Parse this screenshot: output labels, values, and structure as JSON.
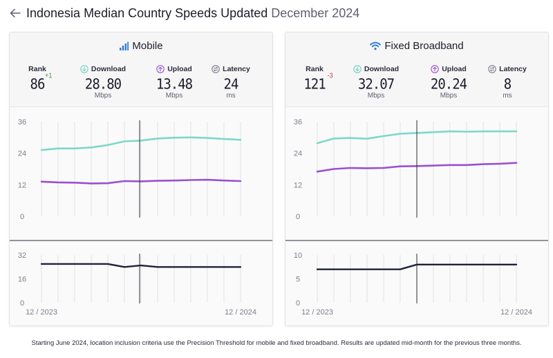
{
  "header": {
    "title": "Indonesia Median Country Speeds Updated",
    "date": "December 2024"
  },
  "colors": {
    "download": "#7dd8c8",
    "upload": "#9a4fd3",
    "latency": "#1f2238",
    "grid": "#e3e3e6"
  },
  "labels": {
    "rank": "Rank",
    "download": "Download",
    "upload": "Upload",
    "latency": "Latency",
    "mbps": "Mbps",
    "ms": "ms"
  },
  "mobile": {
    "title": "Mobile",
    "icon": "signal-bars-icon",
    "rank": "86",
    "rank_delta": "+1",
    "download": "28.80",
    "upload": "13.48",
    "latency": "24"
  },
  "fixed": {
    "title": "Fixed Broadband",
    "icon": "wifi-icon",
    "rank": "121",
    "rank_delta": "-3",
    "download": "32.07",
    "upload": "20.24",
    "latency": "8"
  },
  "chart_data": [
    {
      "type": "line",
      "title": "Mobile",
      "x": [
        "12 / 2023",
        "01 / 2024",
        "02 / 2024",
        "03 / 2024",
        "04 / 2024",
        "05 / 2024",
        "06 / 2024",
        "07 / 2024",
        "08 / 2024",
        "09 / 2024",
        "10 / 2024",
        "11 / 2024",
        "12 / 2024"
      ],
      "x_tick_labels": [
        "12 / 2023",
        "12 / 2024"
      ],
      "marker_index": 6,
      "speed_axis": {
        "ticks": [
          "36",
          "24",
          "12",
          "0"
        ],
        "ylim": [
          0,
          36
        ]
      },
      "latency_axis": {
        "ticks": [
          "32",
          "16",
          "0"
        ],
        "ylim": [
          0,
          32
        ]
      },
      "series": [
        {
          "name": "Download",
          "values": [
            25.2,
            25.8,
            25.8,
            26.2,
            27.1,
            28.5,
            28.8,
            29.6,
            29.9,
            30.0,
            29.8,
            29.4,
            29.1
          ]
        },
        {
          "name": "Upload",
          "values": [
            13.2,
            12.9,
            12.8,
            12.5,
            12.6,
            13.4,
            13.3,
            13.5,
            13.6,
            13.8,
            13.9,
            13.6,
            13.4
          ]
        },
        {
          "name": "Latency",
          "values": [
            26,
            26,
            26,
            26,
            26,
            24,
            25,
            24,
            24,
            24,
            24,
            24,
            24
          ]
        }
      ]
    },
    {
      "type": "line",
      "title": "Fixed Broadband",
      "x": [
        "12 / 2023",
        "01 / 2024",
        "02 / 2024",
        "03 / 2024",
        "04 / 2024",
        "05 / 2024",
        "06 / 2024",
        "07 / 2024",
        "08 / 2024",
        "09 / 2024",
        "10 / 2024",
        "11 / 2024",
        "12 / 2024"
      ],
      "x_tick_labels": [
        "12 / 2023",
        "12 / 2024"
      ],
      "marker_index": 6,
      "speed_axis": {
        "ticks": [
          "36",
          "24",
          "12",
          "0"
        ],
        "ylim": [
          0,
          36
        ]
      },
      "latency_axis": {
        "ticks": [
          "10",
          "5",
          "0"
        ],
        "ylim": [
          0,
          10
        ]
      },
      "series": [
        {
          "name": "Download",
          "values": [
            27.8,
            29.6,
            29.8,
            29.5,
            30.5,
            31.4,
            31.7,
            32.0,
            32.3,
            32.2,
            32.3,
            32.3,
            32.3
          ]
        },
        {
          "name": "Upload",
          "values": [
            17.0,
            18.0,
            18.4,
            18.3,
            18.4,
            19.0,
            19.1,
            19.3,
            19.5,
            19.5,
            19.8,
            20.0,
            20.3
          ]
        },
        {
          "name": "Latency",
          "values": [
            7,
            7,
            7,
            7,
            7,
            7,
            8,
            8,
            8,
            8,
            8,
            8,
            8
          ]
        }
      ]
    }
  ],
  "footnote": "Starting June 2024, location inclusion criteria use the Precision Threshold for mobile and fixed broadband. Results are updated mid-month for the previous three months."
}
